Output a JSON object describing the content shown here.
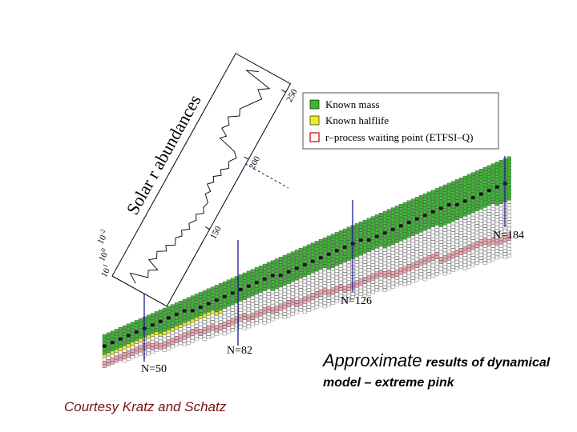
{
  "figure": {
    "axis_title": "Solar r abundances",
    "mass_ticks": [
      "150",
      "200",
      "250"
    ],
    "abundance_ticks": [
      {
        "base": "10",
        "exp": "1"
      },
      {
        "base": "10",
        "exp": "0"
      },
      {
        "base": "10",
        "exp": "-2"
      }
    ],
    "legend": [
      "Known mass",
      "Known halflife",
      "r–process waiting point (ETFSI–Q)"
    ],
    "shell_labels": [
      "N=50",
      "N=82",
      "N=126",
      "N=184"
    ]
  },
  "caption": {
    "lead": "Approximate",
    "rest": "results of dynamical",
    "line2": "model – extreme pink"
  },
  "credit": "Courtesy Kratz and Schatz"
}
